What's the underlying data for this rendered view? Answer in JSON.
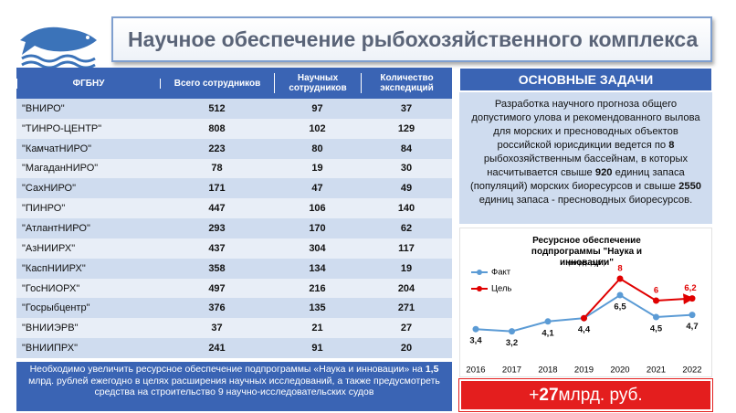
{
  "header": {
    "title": "Научное обеспечение рыбохозяйственного комплекса"
  },
  "table": {
    "header": [
      "ФГБНУ",
      "Всего сотрудников",
      "Научных сотрудников",
      "Количество экспедиций"
    ],
    "rows": [
      [
        "\"ВНИРО\"",
        "512",
        "97",
        "37"
      ],
      [
        "\"ТИНРО-ЦЕНТР\"",
        "808",
        "102",
        "129"
      ],
      [
        "\"КамчатНИРО\"",
        "223",
        "80",
        "84"
      ],
      [
        "\"МагаданНИРО\"",
        "78",
        "19",
        "30"
      ],
      [
        "\"СахНИРО\"",
        "171",
        "47",
        "49"
      ],
      [
        "\"ПИНРО\"",
        "447",
        "106",
        "140"
      ],
      [
        "\"АтлантНИРО\"",
        "293",
        "170",
        "62"
      ],
      [
        "\"АзНИИРХ\"",
        "437",
        "304",
        "117"
      ],
      [
        "\"КаспНИИРХ\"",
        "358",
        "134",
        "19"
      ],
      [
        "\"ГосНИОРХ\"",
        "497",
        "216",
        "204"
      ],
      [
        "\"Госрыбцентр\"",
        "376",
        "135",
        "271"
      ],
      [
        "\"ВНИИЭРВ\"",
        "37",
        "21",
        "27"
      ],
      [
        "\"ВНИИПРХ\"",
        "241",
        "91",
        "20"
      ]
    ]
  },
  "note": [
    "Необходимо увеличить ресурсное обеспечение подпрограммы «Наука и инновации» на ",
    "1,5",
    " млрд. рублей ежегодно в целях расширения научных исследований, а также предусмотреть средства на строительство 9 научно-исследовательских судов"
  ],
  "tasks": {
    "title": "ОСНОВНЫЕ ЗАДАЧИ",
    "text": [
      "Разработка научного прогноза общего допустимого улова и рекомендованного вылова для морских и пресноводных объектов российской юрисдикции ведется по ",
      "8",
      " рыбохозяйственным бассейнам, в которых насчитывается свыше ",
      "920",
      " единиц запаса (популяций) морских биоресурсов и свыше ",
      "2550",
      " единиц запаса - пресноводных биоресурсов."
    ]
  },
  "total": [
    "+",
    "27",
    " млрд. руб."
  ],
  "chart_data": {
    "type": "line",
    "title": "Ресурсное обеспечение подпрограммы \"Наука и инновации\"",
    "subtitle": "(млрд. руб.)",
    "categories": [
      "2016",
      "2017",
      "2018",
      "2019",
      "2020",
      "2021",
      "2022"
    ],
    "series": [
      {
        "name": "Факт",
        "color": "#5b9bd5",
        "values": [
          3.4,
          3.2,
          4.1,
          4.4,
          6.5,
          4.5,
          4.7
        ],
        "value_labels": [
          "3,4",
          "3,2",
          "4,1",
          "4,4",
          "6,5",
          "4,5",
          "4,7"
        ]
      },
      {
        "name": "Цель",
        "color": "#e00000",
        "values": [
          null,
          null,
          null,
          4.4,
          8,
          6,
          6.2
        ],
        "value_labels": [
          null,
          null,
          null,
          null,
          "8",
          "6",
          "6,2"
        ]
      }
    ]
  }
}
